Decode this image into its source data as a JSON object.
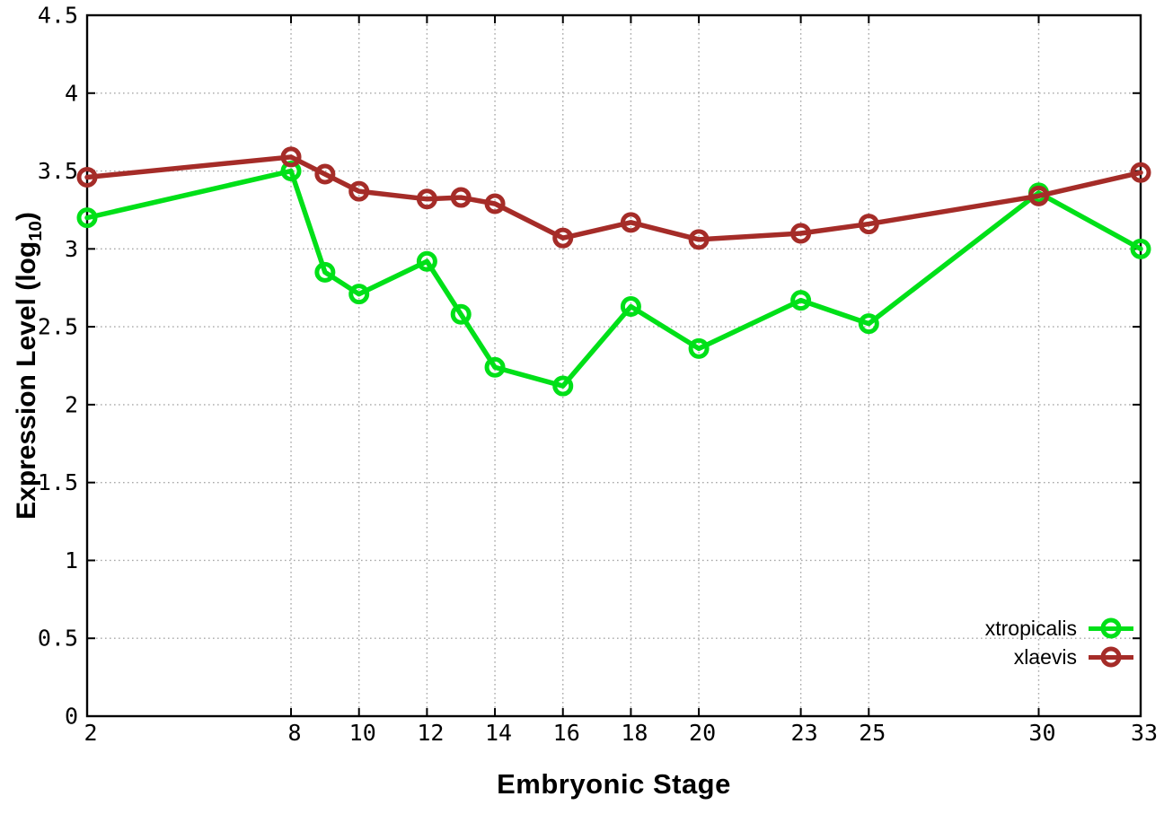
{
  "figure": {
    "background": "#ffffff"
  },
  "colors": {
    "axis": "#000000",
    "grid": "#a8a8a8",
    "text": "#000000",
    "xtropicalis": "#00e018",
    "xlaevis": "#a52c28"
  },
  "chart_data": {
    "type": "line",
    "title": "",
    "xlabel": "Embryonic Stage",
    "ylabel": "Expression Level (log10)",
    "ylabel_parts": {
      "pre": "Expression Level (log",
      "sub": "10",
      "post": ")"
    },
    "xlim": [
      2,
      33
    ],
    "ylim": [
      0,
      4.5
    ],
    "grid": true,
    "grid_style": "dotted",
    "legend_position": "bottom-right",
    "x_tick_values": [
      2,
      8,
      10,
      12,
      14,
      16,
      18,
      20,
      23,
      25,
      30,
      33
    ],
    "x_tick_labels": [
      "2",
      "8",
      "10",
      "12",
      "14",
      "16",
      "18",
      "20",
      "23",
      "25",
      "30",
      "33"
    ],
    "y_tick_values": [
      0,
      0.5,
      1,
      1.5,
      2,
      2.5,
      3,
      3.5,
      4,
      4.5
    ],
    "y_tick_labels": [
      "0",
      "0.5",
      "1",
      "1.5",
      "2",
      "2.5",
      "3",
      "3.5",
      "4",
      "4.5"
    ],
    "x": [
      2,
      8,
      9,
      10,
      12,
      13,
      14,
      16,
      18,
      20,
      23,
      25,
      30,
      33
    ],
    "series": [
      {
        "name": "xtropicalis",
        "color": "#00e018",
        "marker": "open-circle",
        "values": [
          3.2,
          3.5,
          2.85,
          2.71,
          2.92,
          2.58,
          2.24,
          2.12,
          2.63,
          2.36,
          2.67,
          2.52,
          3.36,
          3.0
        ]
      },
      {
        "name": "xlaevis",
        "color": "#a52c28",
        "marker": "open-circle",
        "values": [
          3.46,
          3.59,
          3.48,
          3.37,
          3.32,
          3.33,
          3.29,
          3.07,
          3.17,
          3.06,
          3.1,
          3.16,
          3.34,
          3.49
        ]
      }
    ]
  }
}
